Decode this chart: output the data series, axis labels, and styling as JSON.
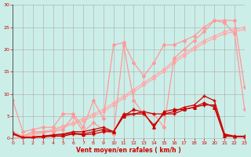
{
  "x": [
    0,
    1,
    2,
    3,
    4,
    5,
    6,
    7,
    8,
    9,
    10,
    11,
    12,
    13,
    14,
    15,
    16,
    17,
    18,
    19,
    20,
    21,
    22,
    23
  ],
  "bg_color": "#cceee8",
  "grid_color": "#aaaaaa",
  "xlabel": "Vent moyen/en rafales ( km/h )",
  "light_line1": [
    8.5,
    1.5,
    2.0,
    2.5,
    2.5,
    5.5,
    5.5,
    2.5,
    8.5,
    4.5,
    21.0,
    21.5,
    17.0,
    14.0,
    17.0,
    21.0,
    21.0,
    22.0,
    23.0,
    25.0,
    26.5,
    26.5,
    26.5,
    11.5
  ],
  "light_line2": [
    1.5,
    0.5,
    1.5,
    1.5,
    1.5,
    2.0,
    5.0,
    1.5,
    3.5,
    2.0,
    1.0,
    21.0,
    8.5,
    5.5,
    5.5,
    2.5,
    18.0,
    20.0,
    22.0,
    24.0,
    26.5,
    26.0,
    23.5,
    6.5
  ],
  "light_diag1": [
    0.0,
    0.5,
    1.0,
    1.5,
    2.0,
    2.8,
    3.5,
    4.5,
    5.5,
    6.5,
    8.0,
    9.5,
    11.0,
    12.5,
    14.0,
    15.5,
    17.5,
    19.0,
    20.5,
    22.0,
    23.0,
    24.0,
    24.5,
    25.0
  ],
  "light_diag2": [
    0.0,
    0.3,
    0.8,
    1.2,
    1.8,
    2.5,
    3.2,
    4.0,
    5.0,
    6.0,
    7.5,
    9.0,
    10.5,
    12.0,
    13.5,
    15.0,
    17.0,
    18.5,
    20.0,
    21.5,
    22.5,
    23.5,
    24.0,
    24.5
  ],
  "dark_line1": [
    1.0,
    0.2,
    0.3,
    0.5,
    0.8,
    1.0,
    1.5,
    1.5,
    2.0,
    2.5,
    1.5,
    5.0,
    5.5,
    6.0,
    5.5,
    5.5,
    6.0,
    7.0,
    7.5,
    9.5,
    8.5,
    1.0,
    0.5,
    0.5
  ],
  "dark_line2": [
    1.0,
    0.1,
    0.2,
    0.3,
    0.5,
    0.5,
    1.0,
    0.8,
    1.0,
    1.5,
    1.5,
    5.5,
    5.5,
    5.5,
    3.0,
    5.5,
    5.5,
    6.5,
    7.0,
    7.5,
    7.5,
    0.8,
    0.4,
    0.4
  ],
  "dark_line3": [
    1.2,
    0.2,
    0.3,
    0.5,
    0.7,
    0.8,
    1.2,
    1.0,
    1.5,
    2.0,
    1.5,
    5.0,
    6.5,
    5.8,
    2.5,
    6.0,
    6.5,
    6.5,
    7.0,
    8.0,
    7.0,
    0.5,
    0.4,
    0.3
  ],
  "light_color": "#ff9999",
  "dark_color": "#cc0000",
  "diag_color": "#ffaaaa",
  "ylim": [
    0,
    30
  ],
  "xlim": [
    0,
    23
  ],
  "yticks": [
    0,
    5,
    10,
    15,
    20,
    25,
    30
  ],
  "xticks": [
    0,
    1,
    2,
    3,
    4,
    5,
    6,
    7,
    8,
    9,
    10,
    11,
    12,
    13,
    14,
    15,
    16,
    17,
    18,
    19,
    20,
    21,
    22,
    23
  ]
}
